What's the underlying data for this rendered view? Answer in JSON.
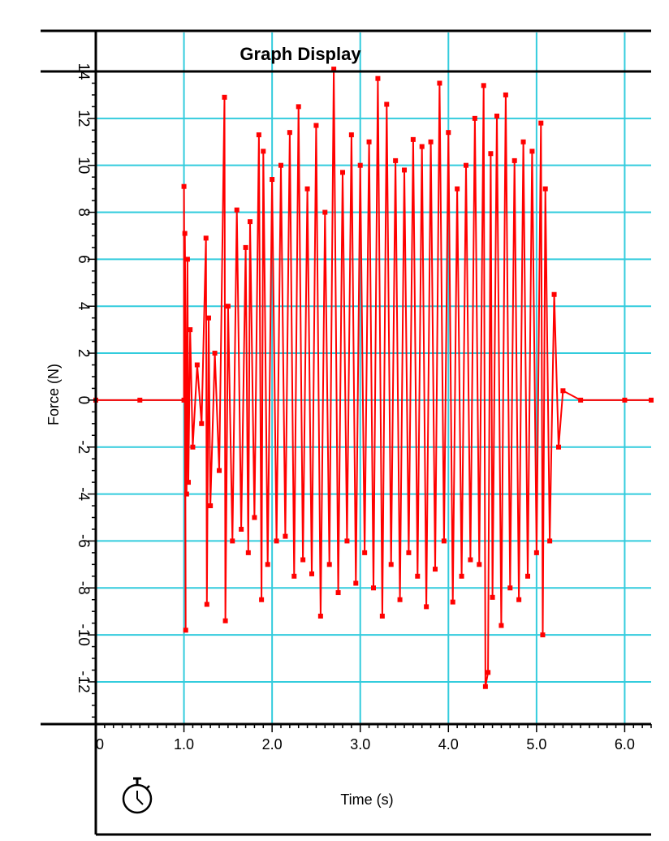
{
  "chart_data": {
    "type": "line",
    "title": "Graph Display",
    "xlabel": "Time (s)",
    "ylabel": "Force (N)",
    "xlim": [
      0,
      6.3
    ],
    "ylim": [
      -13.8,
      14.0
    ],
    "x_ticks": [
      0,
      1,
      2,
      3,
      4,
      5,
      6
    ],
    "x_tick_labels": [
      "0",
      "1.0",
      "2.0",
      "3.0",
      "4.0",
      "5.0",
      "6.0"
    ],
    "y_ticks": [
      14,
      12,
      10,
      8,
      6,
      4,
      2,
      0,
      -2,
      -4,
      -6,
      -8,
      -10,
      -12
    ],
    "y_tick_labels": [
      "14",
      "12",
      "10",
      "8",
      "6",
      "4",
      "2",
      "0",
      "-2",
      "-4",
      "-6",
      "-8",
      "-10",
      "-12"
    ],
    "grid": true,
    "colors": {
      "series": "#ff0000",
      "grid": "#33ccdd",
      "axis": "#000000"
    },
    "series": [
      {
        "name": "",
        "x": [
          0.0,
          0.5,
          1.0,
          1.0,
          1.02,
          1.01,
          1.03,
          1.04,
          1.05,
          1.07,
          1.1,
          1.15,
          1.2,
          1.25,
          1.26,
          1.28,
          1.3,
          1.35,
          1.4,
          1.46,
          1.47,
          1.5,
          1.55,
          1.6,
          1.65,
          1.7,
          1.73,
          1.75,
          1.8,
          1.85,
          1.88,
          1.9,
          1.95,
          2.0,
          2.05,
          2.1,
          2.15,
          2.2,
          2.25,
          2.3,
          2.35,
          2.4,
          2.45,
          2.5,
          2.55,
          2.6,
          2.65,
          2.7,
          2.75,
          2.8,
          2.85,
          2.9,
          2.95,
          3.0,
          3.05,
          3.1,
          3.15,
          3.2,
          3.25,
          3.3,
          3.35,
          3.4,
          3.45,
          3.5,
          3.55,
          3.6,
          3.65,
          3.7,
          3.75,
          3.8,
          3.85,
          3.9,
          3.95,
          4.0,
          4.05,
          4.1,
          4.15,
          4.2,
          4.25,
          4.3,
          4.35,
          4.4,
          4.42,
          4.45,
          4.48,
          4.5,
          4.55,
          4.6,
          4.65,
          4.7,
          4.75,
          4.8,
          4.85,
          4.9,
          4.95,
          5.0,
          5.05,
          5.07,
          5.1,
          5.15,
          5.2,
          5.25,
          5.3,
          5.5,
          6.0,
          6.3
        ],
        "y": [
          0.0,
          0.0,
          0.0,
          9.1,
          -9.8,
          7.1,
          -4.0,
          6.0,
          -3.5,
          3.0,
          -2.0,
          1.5,
          -1.0,
          6.9,
          -8.7,
          3.5,
          -4.5,
          2.0,
          -3.0,
          12.9,
          -9.4,
          4.0,
          -6.0,
          8.1,
          -5.5,
          6.5,
          -6.5,
          7.6,
          -5.0,
          11.3,
          -8.5,
          10.6,
          -7.0,
          9.4,
          -6.0,
          10.0,
          -5.8,
          11.4,
          -7.5,
          12.5,
          -6.8,
          9.0,
          -7.4,
          11.7,
          -9.2,
          8.0,
          -7.0,
          14.1,
          -8.2,
          9.7,
          -6.0,
          11.3,
          -7.8,
          10.0,
          -6.5,
          11.0,
          -8.0,
          13.7,
          -9.2,
          12.6,
          -7.0,
          10.2,
          -8.5,
          9.8,
          -6.5,
          11.1,
          -7.5,
          10.8,
          -8.8,
          11.0,
          -7.2,
          13.5,
          -6.0,
          11.4,
          -8.6,
          9.0,
          -7.5,
          10.0,
          -6.8,
          12.0,
          -7.0,
          13.4,
          -12.2,
          -11.6,
          10.5,
          -8.4,
          12.1,
          -9.6,
          13.0,
          -8.0,
          10.2,
          -8.5,
          11.0,
          -7.5,
          10.6,
          -6.5,
          11.8,
          -10.0,
          9.0,
          -6.0,
          4.5,
          -2.0,
          0.4,
          0.0,
          0.0,
          0.0
        ]
      }
    ]
  }
}
